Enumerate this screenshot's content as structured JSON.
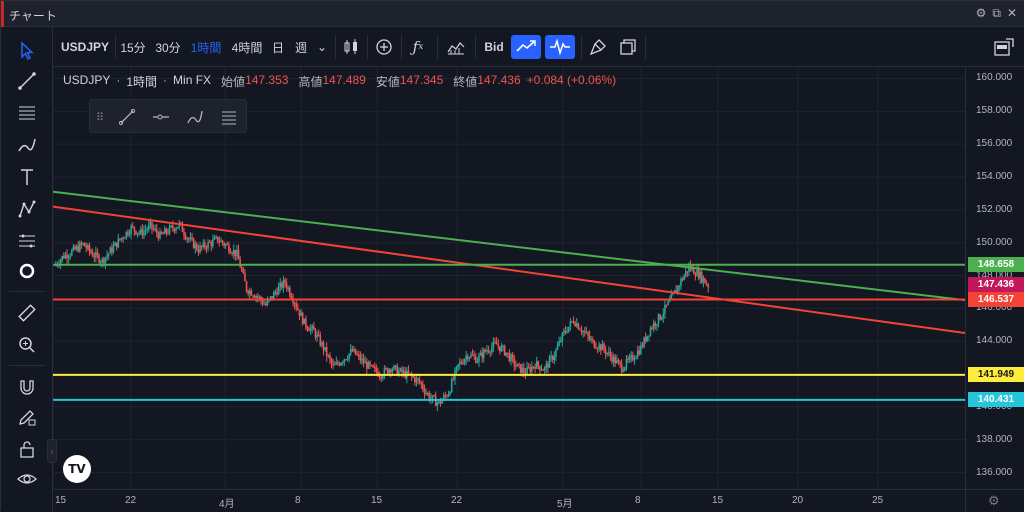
{
  "window": {
    "title": "チャート",
    "icons": [
      "settings-icon",
      "popout-icon",
      "close-icon"
    ]
  },
  "toolbar": {
    "symbol": "USDJPY",
    "intervals": [
      "15分",
      "30分",
      "1時間",
      "4時間",
      "日",
      "週"
    ],
    "active_interval": "1時間",
    "bid_label": "Bid"
  },
  "legend": {
    "symbol": "USDJPY",
    "interval": "1時間",
    "source": "Min FX",
    "open_label": "始値",
    "open": "147.353",
    "high_label": "高値",
    "high": "147.489",
    "low_label": "安値",
    "low": "147.345",
    "close_label": "終値",
    "close": "147.436",
    "change": "+0.084 (+0.06%)"
  },
  "chart_data": {
    "type": "candlestick",
    "y_ticks": [
      "160.000",
      "158.000",
      "156.000",
      "154.000",
      "152.000",
      "150.000",
      "148.000",
      "146.000",
      "144.000",
      "142.000",
      "140.000",
      "138.000",
      "136.000"
    ],
    "x_ticks": [
      "15",
      "22",
      "4月",
      "8",
      "15",
      "22",
      "5月",
      "8",
      "15",
      "20",
      "25"
    ],
    "ylim": [
      135,
      160.7
    ],
    "price_tags": [
      {
        "value": "148.658",
        "color": "#4caf50"
      },
      {
        "value": "147.436",
        "color": "#c2185b"
      },
      {
        "value": "146.537",
        "color": "#f44336"
      },
      {
        "value": "141.949",
        "color": "#ffeb3b"
      },
      {
        "value": "140.431",
        "color": "#26c6da"
      }
    ],
    "horizontal_lines": [
      {
        "price": 148.658,
        "color": "#4caf50"
      },
      {
        "price": 146.537,
        "color": "#f44336"
      },
      {
        "price": 141.949,
        "color": "#ffeb3b"
      },
      {
        "price": 140.431,
        "color": "#26c6da"
      }
    ],
    "trend_lines": [
      {
        "from_price": 153.1,
        "to_price": 146.5,
        "color": "#4caf50"
      },
      {
        "from_price": 152.2,
        "to_price": 144.5,
        "color": "#f44336"
      }
    ],
    "price_path": [
      148.6,
      149.2,
      149.5,
      149.9,
      149.3,
      148.9,
      149.6,
      150.3,
      150.9,
      150.6,
      151.0,
      150.4,
      150.8,
      151.1,
      150.2,
      149.6,
      149.9,
      150.2,
      149.8,
      149.3,
      147.2,
      146.8,
      146.2,
      147.0,
      147.6,
      146.4,
      145.1,
      144.6,
      143.6,
      142.4,
      142.9,
      143.4,
      142.8,
      142.3,
      142.0,
      142.4,
      142.1,
      141.9,
      141.5,
      140.6,
      140.2,
      140.9,
      142.5,
      143.2,
      142.9,
      143.5,
      143.8,
      143.3,
      142.5,
      142.1,
      142.6,
      142.3,
      143.2,
      144.5,
      145.3,
      144.6,
      143.9,
      143.6,
      143.0,
      142.4,
      142.9,
      143.6,
      144.8,
      145.5,
      146.4,
      147.5,
      148.5,
      148.1,
      147.4
    ]
  },
  "colors": {
    "up": "#26a69a",
    "down": "#ef5350",
    "accent": "#2962ff",
    "background": "#131722"
  }
}
